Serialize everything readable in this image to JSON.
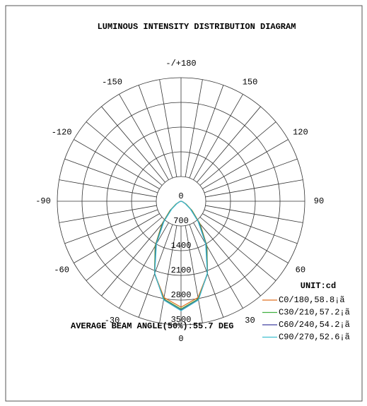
{
  "chart_data": {
    "type": "polar",
    "title": "LUMINOUS INTENSITY DISTRIBUTION DIAGRAM",
    "unit_label": "UNIT:cd",
    "annotation": "AVERAGE BEAM ANGLE(50%):55.7 DEG",
    "x": [
      -90,
      -80,
      -70,
      -60,
      -50,
      -40,
      -30,
      -20,
      -10,
      0,
      10,
      20,
      30,
      40,
      50,
      60,
      70,
      80,
      90
    ],
    "rlim": [
      0,
      3500
    ],
    "rticks": [
      0,
      700,
      1400,
      2100,
      2800,
      3500
    ],
    "angle_ticks": [
      {
        "value": 180,
        "label": "-/+180"
      },
      150,
      120,
      90,
      60,
      30,
      0,
      -30,
      -60,
      -90,
      -120,
      -150
    ],
    "series": [
      {
        "name": "C0/180,58.8¡ã",
        "color": "#e07020",
        "values": [
          0,
          15,
          60,
          170,
          410,
          840,
          1470,
          2180,
          2770,
          3000,
          2770,
          2180,
          1470,
          840,
          410,
          170,
          60,
          15,
          0
        ]
      },
      {
        "name": "C30/210,57.2¡ã",
        "color": "#40b040",
        "values": [
          0,
          12,
          55,
          160,
          390,
          820,
          1460,
          2190,
          2810,
          3050,
          2810,
          2190,
          1460,
          820,
          390,
          160,
          55,
          12,
          0
        ]
      },
      {
        "name": "C60/240,54.2¡ã",
        "color": "#4040a0",
        "values": [
          0,
          10,
          45,
          140,
          360,
          780,
          1420,
          2180,
          2830,
          3080,
          2830,
          2180,
          1420,
          780,
          360,
          140,
          45,
          10,
          0
        ]
      },
      {
        "name": "C90/270,52.6¡ã",
        "color": "#40c0d0",
        "values": [
          0,
          8,
          40,
          130,
          340,
          750,
          1390,
          2170,
          2840,
          3100,
          2840,
          2170,
          1390,
          750,
          340,
          130,
          40,
          8,
          0
        ]
      }
    ]
  }
}
